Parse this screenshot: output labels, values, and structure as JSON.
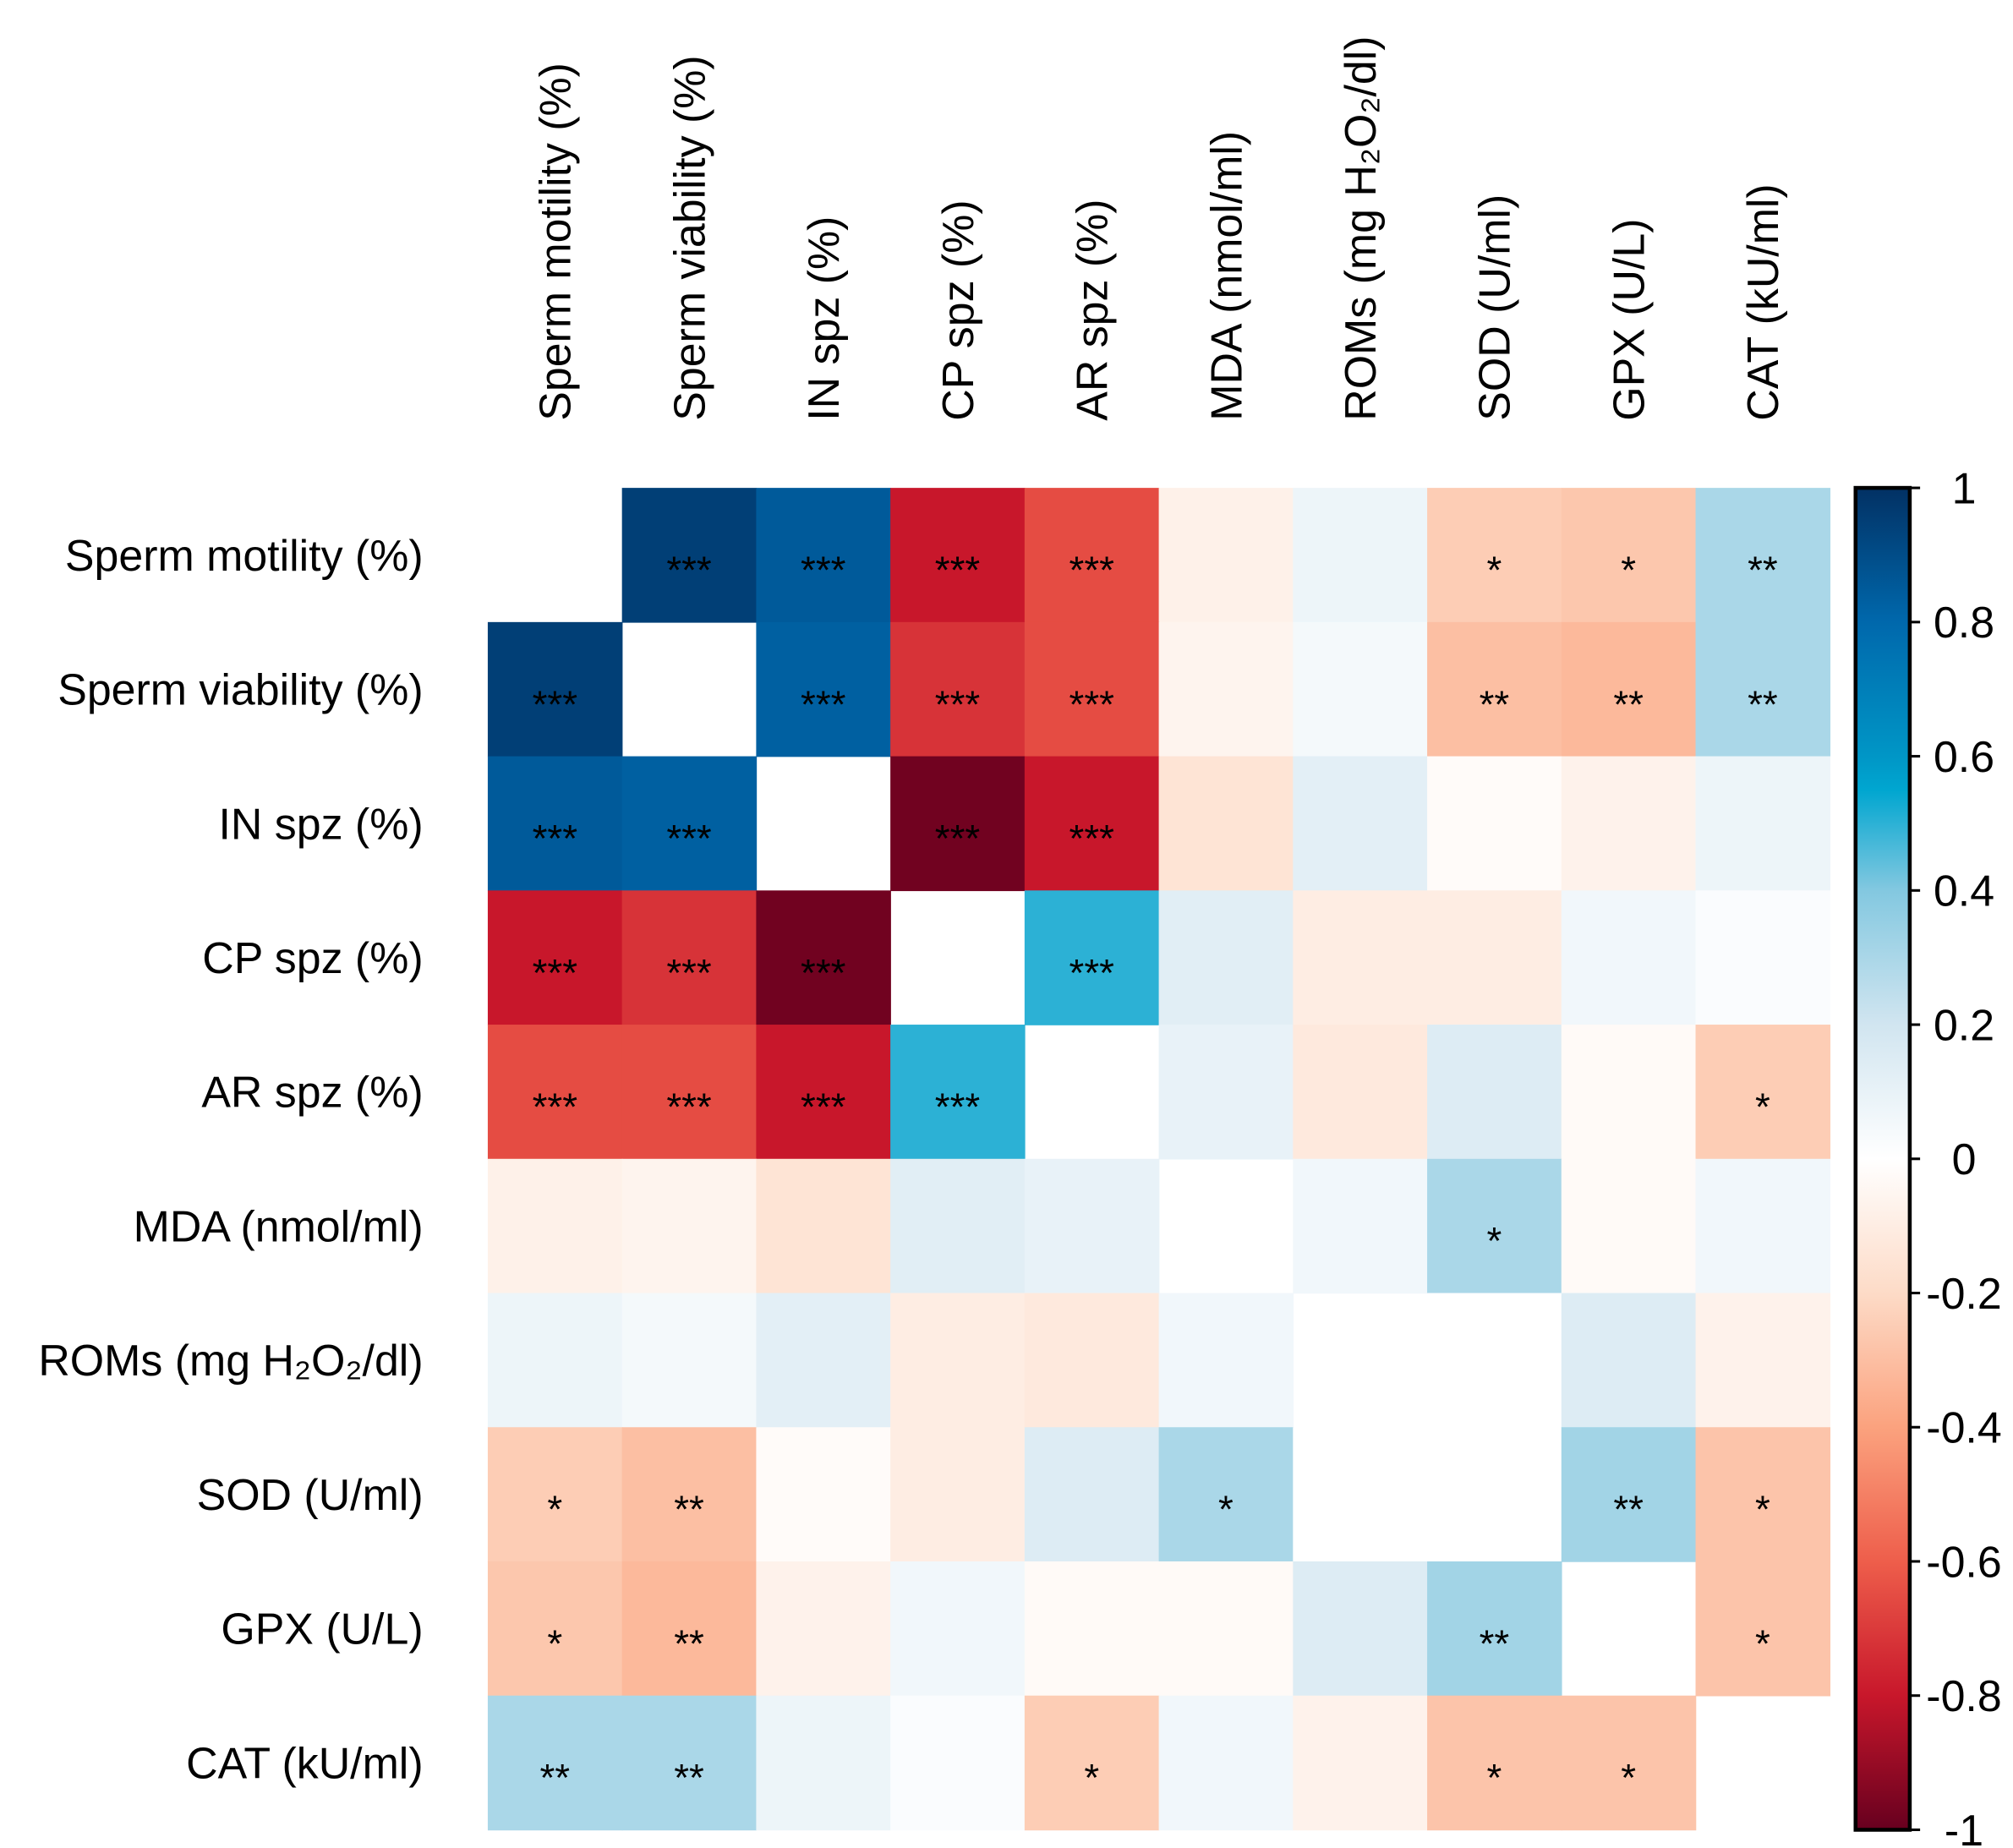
{
  "chart_data": {
    "type": "heatmap",
    "variables": [
      "Sperm motility (%)",
      "Sperm viability (%)",
      "IN spz (%)",
      "CP spz (%)",
      "AR spz (%)",
      "MDA (nmol/ml)",
      "ROMs (mg H₂O₂/dl)",
      "SOD (U/ml)",
      "GPX (U/L)",
      "CAT (kU/ml)"
    ],
    "matrix": [
      [
        null,
        0.95,
        0.85,
        -0.8,
        -0.65,
        -0.08,
        0.08,
        -0.25,
        -0.27,
        0.3
      ],
      [
        0.95,
        null,
        0.83,
        -0.72,
        -0.65,
        -0.06,
        0.05,
        -0.3,
        -0.32,
        0.3
      ],
      [
        0.85,
        0.83,
        null,
        -0.98,
        -0.8,
        -0.15,
        0.12,
        -0.02,
        -0.07,
        0.08
      ],
      [
        -0.8,
        -0.72,
        -0.98,
        null,
        0.5,
        0.13,
        -0.1,
        -0.1,
        0.06,
        0.02
      ],
      [
        -0.65,
        -0.65,
        -0.8,
        0.5,
        null,
        0.1,
        -0.12,
        0.15,
        -0.03,
        -0.25
      ],
      [
        -0.08,
        -0.06,
        -0.15,
        0.13,
        0.1,
        null,
        0.06,
        0.3,
        -0.03,
        0.06
      ],
      [
        0.08,
        0.05,
        0.12,
        -0.1,
        -0.12,
        0.06,
        null,
        0.0,
        0.15,
        -0.07
      ],
      [
        -0.25,
        -0.3,
        -0.02,
        -0.1,
        0.15,
        0.3,
        0.0,
        null,
        0.32,
        -0.28
      ],
      [
        -0.27,
        -0.32,
        -0.07,
        0.06,
        -0.03,
        -0.03,
        0.15,
        0.32,
        null,
        -0.28
      ],
      [
        0.3,
        0.3,
        0.08,
        0.02,
        -0.25,
        0.06,
        -0.07,
        -0.28,
        -0.28,
        null
      ]
    ],
    "significance": [
      [
        "",
        "***",
        "***",
        "***",
        "***",
        "",
        "",
        "*",
        "*",
        "**"
      ],
      [
        "***",
        "",
        "***",
        "***",
        "***",
        "",
        "",
        "**",
        "**",
        "**"
      ],
      [
        "***",
        "***",
        "",
        "***",
        "***",
        "",
        "",
        "",
        "",
        ""
      ],
      [
        "***",
        "***",
        "***",
        "",
        "***",
        "",
        "",
        "",
        "",
        ""
      ],
      [
        "***",
        "***",
        "***",
        "***",
        "",
        "",
        "",
        "",
        "",
        "*"
      ],
      [
        "",
        "",
        "",
        "",
        "",
        "",
        "",
        "*",
        "",
        ""
      ],
      [
        "",
        "",
        "",
        "",
        "",
        "",
        "",
        "",
        "",
        ""
      ],
      [
        "*",
        "**",
        "",
        "",
        "",
        "*",
        "",
        "",
        "**",
        "*"
      ],
      [
        "*",
        "**",
        "",
        "",
        "",
        "",
        "",
        "**",
        "",
        "*"
      ],
      [
        "**",
        "**",
        "",
        "",
        "*",
        "",
        "",
        "*",
        "*",
        ""
      ]
    ],
    "colorbar": {
      "range": [
        -1,
        1
      ],
      "ticks": [
        "1",
        "0.8",
        "0.6",
        "0.4",
        "0.2",
        "0",
        "-0.2",
        "-0.4",
        "-0.6",
        "-0.8",
        "-1"
      ],
      "tick_values": [
        1,
        0.8,
        0.6,
        0.4,
        0.2,
        0,
        -0.2,
        -0.4,
        -0.6,
        -0.8,
        -1
      ],
      "colors": {
        "-1": "#67001F",
        "-0.8": "#C8172B",
        "-0.6": "#EE5E4B",
        "-0.4": "#FBA27E",
        "-0.2": "#FDDBC7",
        "0": "#FFFFFF",
        "0.2": "#D1E5F0",
        "0.4": "#83C8E0",
        "0.55": "#00A6D0",
        "0.6": "#0096C6",
        "0.8": "#0068AC",
        "1": "#023164"
      }
    }
  }
}
